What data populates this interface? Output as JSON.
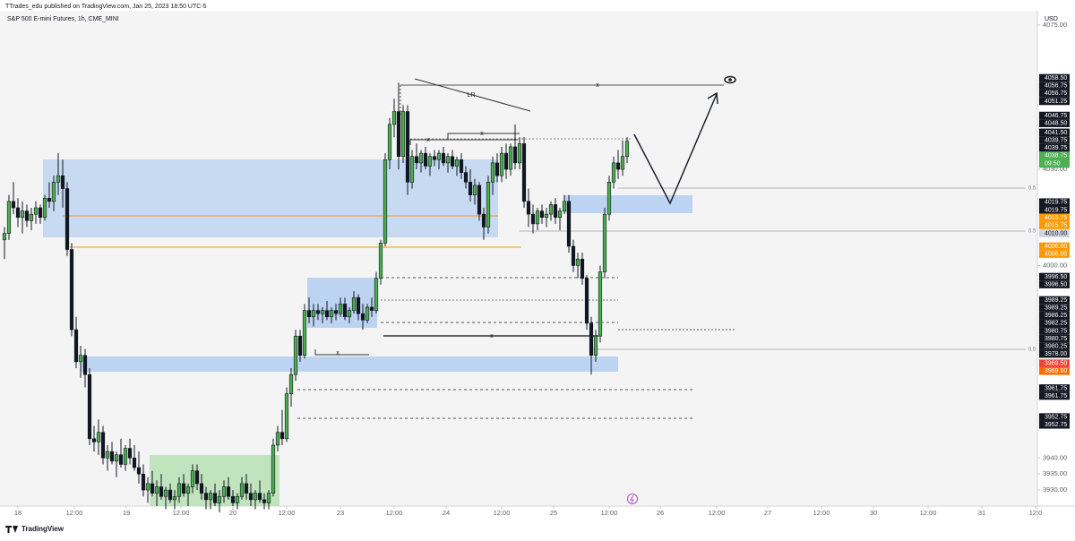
{
  "header": {
    "published": "TTrades_edu published on TradingView.com, Jan 25, 2023 18:50 UTC-5",
    "symbol": "S&P 500 E-mini Futures, 1h, CME_MINI",
    "currency": "USD"
  },
  "footer": {
    "brand": "TradingView"
  },
  "chart_data": {
    "type": "candlestick",
    "x": [
      1,
      2,
      3,
      4,
      5,
      6,
      7,
      8,
      9,
      10,
      11,
      12,
      13,
      14,
      15,
      16,
      17,
      18,
      19,
      20,
      21,
      22,
      23,
      24,
      25,
      26,
      27,
      28,
      29,
      30,
      31,
      32,
      33,
      34,
      35,
      36,
      37,
      38,
      39,
      40,
      41,
      42,
      43,
      44,
      45,
      46,
      47,
      48,
      49,
      50,
      51,
      52,
      53,
      54,
      55,
      56,
      57,
      58,
      59,
      60,
      61,
      62,
      63,
      64,
      65,
      66,
      67,
      68,
      69,
      70,
      71,
      72,
      73,
      74,
      75,
      76,
      77,
      78,
      79,
      80,
      81,
      82,
      83,
      84,
      85,
      86,
      87,
      88,
      89,
      90,
      91,
      92,
      93,
      94,
      95,
      96,
      97,
      98,
      99,
      100,
      101,
      102,
      103,
      104,
      105,
      106,
      107,
      108,
      109,
      110,
      111,
      112,
      113,
      114,
      115,
      116,
      117,
      118,
      119,
      120,
      121,
      122,
      123,
      124,
      125,
      126,
      127,
      128,
      129,
      130,
      131,
      132,
      133,
      134,
      135,
      136,
      137,
      138,
      139,
      140
    ],
    "open": [
      4008,
      4010,
      4020,
      4018,
      4015,
      4017,
      4014,
      4016,
      4018,
      4015,
      4021,
      4020,
      4026,
      4028,
      4024,
      4005,
      3980,
      3970,
      3972,
      3966,
      3946,
      3945,
      3948,
      3940,
      3942,
      3939,
      3941,
      3938,
      3943,
      3940,
      3937,
      3935,
      3930,
      3932,
      3929,
      3931,
      3928,
      3930,
      3927,
      3928,
      3932,
      3929,
      3931,
      3936,
      3932,
      3929,
      3927,
      3929,
      3926,
      3928,
      3931,
      3928,
      3926,
      3928,
      3932,
      3929,
      3927,
      3929,
      3927,
      3926,
      3929,
      3944,
      3948,
      3946,
      3960,
      3966,
      3978,
      3972,
      3986,
      3984,
      3986,
      3985,
      3986,
      3984,
      3986,
      3985,
      3988,
      3984,
      3986,
      3990,
      3985,
      3983,
      3987,
      3986,
      3996,
      4007,
      4033,
      4044,
      4048,
      4034,
      4048,
      4026,
      4034,
      4032,
      4035,
      4031,
      4034,
      4033,
      4035,
      4032,
      4034,
      4031,
      4033,
      4029,
      4026,
      4022,
      4025,
      4016,
      4012,
      4026,
      4032,
      4028,
      4035,
      4030,
      4037,
      4032,
      4038,
      4020,
      4016,
      4013,
      4017,
      4015,
      4016,
      4019,
      4015,
      4017,
      4020,
      4006,
      4000,
      4002,
      3996,
      3982,
      3972,
      3978,
      3998,
      4016,
      4026,
      4032,
      4030,
      4034
    ],
    "high": [
      4012,
      4022,
      4026,
      4021,
      4020,
      4019,
      4018,
      4020,
      4019,
      4022,
      4026,
      4028,
      4035,
      4033,
      4026,
      4007,
      3984,
      3975,
      3974,
      3968,
      3950,
      3952,
      3950,
      3944,
      3945,
      3942,
      3946,
      3944,
      3946,
      3944,
      3942,
      3938,
      3934,
      3936,
      3933,
      3935,
      3931,
      3932,
      3930,
      3934,
      3935,
      3932,
      3938,
      3938,
      3935,
      3931,
      3930,
      3932,
      3930,
      3933,
      3934,
      3930,
      3929,
      3934,
      3935,
      3932,
      3930,
      3933,
      3929,
      3930,
      3946,
      3950,
      3955,
      3962,
      3968,
      3980,
      3980,
      3988,
      3990,
      3988,
      3988,
      3987,
      3989,
      3987,
      3988,
      3990,
      3990,
      3987,
      3992,
      3991,
      3988,
      3988,
      3990,
      3998,
      4008,
      4035,
      4046,
      4052,
      4057,
      4050,
      4050,
      4036,
      4038,
      4036,
      4037,
      4035,
      4036,
      4036,
      4037,
      4035,
      4036,
      4034,
      4035,
      4031,
      4030,
      4027,
      4026,
      4018,
      4028,
      4034,
      4035,
      4037,
      4038,
      4038,
      4044,
      4040,
      4040,
      4024,
      4019,
      4018,
      4019,
      4018,
      4020,
      4021,
      4018,
      4022,
      4022,
      4008,
      4004,
      4004,
      3997,
      3984,
      3980,
      4000,
      4018,
      4028,
      4034,
      4036,
      4039,
      4040
    ],
    "low": [
      4002,
      4008,
      4016,
      4012,
      4010,
      4012,
      4011,
      4013,
      4013,
      4014,
      4018,
      4017,
      4022,
      4018,
      4003,
      3978,
      3968,
      3965,
      3962,
      3944,
      3942,
      3941,
      3938,
      3936,
      3938,
      3934,
      3937,
      3936,
      3938,
      3936,
      3932,
      3928,
      3926,
      3928,
      3925,
      3927,
      3924,
      3926,
      3924,
      3926,
      3928,
      3925,
      3929,
      3930,
      3927,
      3924,
      3924,
      3925,
      3923,
      3926,
      3927,
      3924,
      3924,
      3927,
      3927,
      3925,
      3924,
      3926,
      3924,
      3924,
      3928,
      3942,
      3944,
      3945,
      3956,
      3964,
      3970,
      3971,
      3982,
      3981,
      3983,
      3982,
      3983,
      3982,
      3983,
      3984,
      3983,
      3982,
      3985,
      3983,
      3980,
      3982,
      3984,
      3985,
      3994,
      4006,
      4030,
      4040,
      4030,
      4032,
      4022,
      4024,
      4030,
      4029,
      4030,
      4028,
      4031,
      4030,
      4031,
      4029,
      4030,
      4028,
      4027,
      4024,
      4020,
      4019,
      4014,
      4008,
      4010,
      4022,
      4026,
      4026,
      4027,
      4028,
      4030,
      4030,
      4018,
      4012,
      4010,
      4011,
      4013,
      4012,
      4014,
      4013,
      4011,
      4016,
      4004,
      3998,
      3996,
      3994,
      3980,
      3966,
      3970,
      3976,
      3996,
      4014,
      4024,
      4027,
      4028,
      4032
    ],
    "close": [
      4010,
      4020,
      4018,
      4015,
      4017,
      4014,
      4016,
      4018,
      4015,
      4021,
      4020,
      4026,
      4028,
      4024,
      4005,
      3980,
      3970,
      3972,
      3966,
      3946,
      3945,
      3948,
      3940,
      3942,
      3939,
      3941,
      3938,
      3943,
      3940,
      3937,
      3935,
      3930,
      3932,
      3929,
      3931,
      3928,
      3930,
      3927,
      3928,
      3932,
      3929,
      3931,
      3936,
      3932,
      3929,
      3927,
      3929,
      3926,
      3928,
      3931,
      3928,
      3926,
      3928,
      3932,
      3929,
      3927,
      3929,
      3927,
      3926,
      3929,
      3944,
      3948,
      3946,
      3960,
      3966,
      3978,
      3972,
      3986,
      3984,
      3986,
      3985,
      3986,
      3984,
      3986,
      3985,
      3988,
      3984,
      3986,
      3990,
      3985,
      3983,
      3987,
      3986,
      3996,
      4007,
      4033,
      4044,
      4048,
      4034,
      4048,
      4026,
      4034,
      4032,
      4035,
      4031,
      4034,
      4033,
      4035,
      4032,
      4034,
      4031,
      4033,
      4029,
      4026,
      4022,
      4025,
      4016,
      4012,
      4026,
      4032,
      4028,
      4035,
      4030,
      4037,
      4032,
      4038,
      4020,
      4016,
      4013,
      4017,
      4015,
      4016,
      4019,
      4015,
      4017,
      4020,
      4006,
      4000,
      4002,
      3996,
      3982,
      3972,
      3978,
      3998,
      4016,
      4026,
      4032,
      4030,
      4034,
      4038.75
    ],
    "up_color": "#4caf50",
    "down_color": "#131722",
    "xlim": [
      0,
      232
    ],
    "ylim": [
      3925,
      4080
    ],
    "xticks": [
      {
        "value": 4,
        "label": "18"
      },
      {
        "value": 16.6,
        "label": "12:00"
      },
      {
        "value": 28.2,
        "label": "19"
      },
      {
        "value": 40.4,
        "label": "12:00"
      },
      {
        "value": 52,
        "label": "20"
      },
      {
        "value": 64,
        "label": "12:00"
      },
      {
        "value": 76,
        "label": "23"
      },
      {
        "value": 88,
        "label": "12:00"
      },
      {
        "value": 99.6,
        "label": "24"
      },
      {
        "value": 112,
        "label": "12:00"
      },
      {
        "value": 123.6,
        "label": "25"
      },
      {
        "value": 136,
        "label": "12:00"
      },
      {
        "value": 147.4,
        "label": "26"
      },
      {
        "value": 160,
        "label": "12:00"
      },
      {
        "value": 171.4,
        "label": "27"
      },
      {
        "value": 183.4,
        "label": "12:00"
      },
      {
        "value": 195,
        "label": "30"
      },
      {
        "value": 207.2,
        "label": "12:00"
      },
      {
        "value": 219.2,
        "label": "31"
      },
      {
        "value": 231.2,
        "label": "12:0"
      }
    ],
    "yticks": [
      {
        "value": 4075,
        "label": "4075.00"
      },
      {
        "value": 4030,
        "label": "4030.00"
      },
      {
        "value": 4000,
        "label": "4000.00"
      },
      {
        "value": 3940,
        "label": "3940.00"
      },
      {
        "value": 3935,
        "label": "3935.00"
      },
      {
        "value": 3930,
        "label": "3930.00"
      }
    ],
    "price_tags": [
      {
        "value": 4058.5,
        "label": "4058.50",
        "color": "#131722"
      },
      {
        "value": 4056.75,
        "label": "4056.75",
        "color": "#131722"
      },
      {
        "value": 4056.75,
        "label": "4056.75",
        "color": "#131722"
      },
      {
        "value": 4051.25,
        "label": "4051.25",
        "color": "#131722"
      },
      {
        "value": 4046.75,
        "label": "4046.75",
        "color": "#131722"
      },
      {
        "value": 4048.5,
        "label": "4048.50",
        "color": "#131722"
      },
      {
        "value": 4041.5,
        "label": "4041.50",
        "color": "#131722"
      },
      {
        "value": 4039.75,
        "label": "4039.75",
        "color": "#131722"
      },
      {
        "value": 4039.75,
        "label": "4039.75",
        "color": "#131722"
      },
      {
        "value": 4038.75,
        "label": "4038.75",
        "color": "#4caf50"
      },
      {
        "value": 4019.75,
        "label": "4019.75",
        "color": "#131722"
      },
      {
        "value": 4019.75,
        "label": "4019.75",
        "color": "#131722"
      },
      {
        "value": 4015.75,
        "label": "4015.75",
        "color": "#ff9800"
      },
      {
        "value": 4015.75,
        "label": "4015.75",
        "color": "#ff9800"
      },
      {
        "value": 4010,
        "label": "4010.00",
        "color": "#d1d4dc"
      },
      {
        "value": 4006,
        "label": "4006.00",
        "color": "#ff9800"
      },
      {
        "value": 4006,
        "label": "4006.00",
        "color": "#ff9800"
      },
      {
        "value": 3996.5,
        "label": "3996.50",
        "color": "#131722"
      },
      {
        "value": 3996.5,
        "label": "3996.50",
        "color": "#131722"
      },
      {
        "value": 3989.25,
        "label": "3989.25",
        "color": "#131722"
      },
      {
        "value": 3989.25,
        "label": "3989.25",
        "color": "#131722"
      },
      {
        "value": 3986.25,
        "label": "3986.25",
        "color": "#131722"
      },
      {
        "value": 3982.25,
        "label": "3982.25",
        "color": "#131722"
      },
      {
        "value": 3980.75,
        "label": "3980.75",
        "color": "#131722"
      },
      {
        "value": 3980.75,
        "label": "3980.75",
        "color": "#131722"
      },
      {
        "value": 3980.25,
        "label": "3980.25",
        "color": "#131722"
      },
      {
        "value": 3978,
        "label": "3978.00",
        "color": "#131722"
      },
      {
        "value": 3969.5,
        "label": "3969.50",
        "color": "#f44336"
      },
      {
        "value": 3969.5,
        "label": "3969.50",
        "color": "#ff6d00"
      },
      {
        "value": 3961.75,
        "label": "3961.75",
        "color": "#131722"
      },
      {
        "value": 3961.75,
        "label": "3961.75",
        "color": "#131722"
      },
      {
        "value": 3952.75,
        "label": "3952.75",
        "color": "#131722"
      },
      {
        "value": 3952.75,
        "label": "3952.75",
        "color": "#131722"
      }
    ],
    "countdown": "09:50",
    "annotations": [
      "LR",
      "x",
      "x",
      "x",
      "x",
      "x",
      "0.5",
      "0.5",
      "0.5"
    ]
  }
}
